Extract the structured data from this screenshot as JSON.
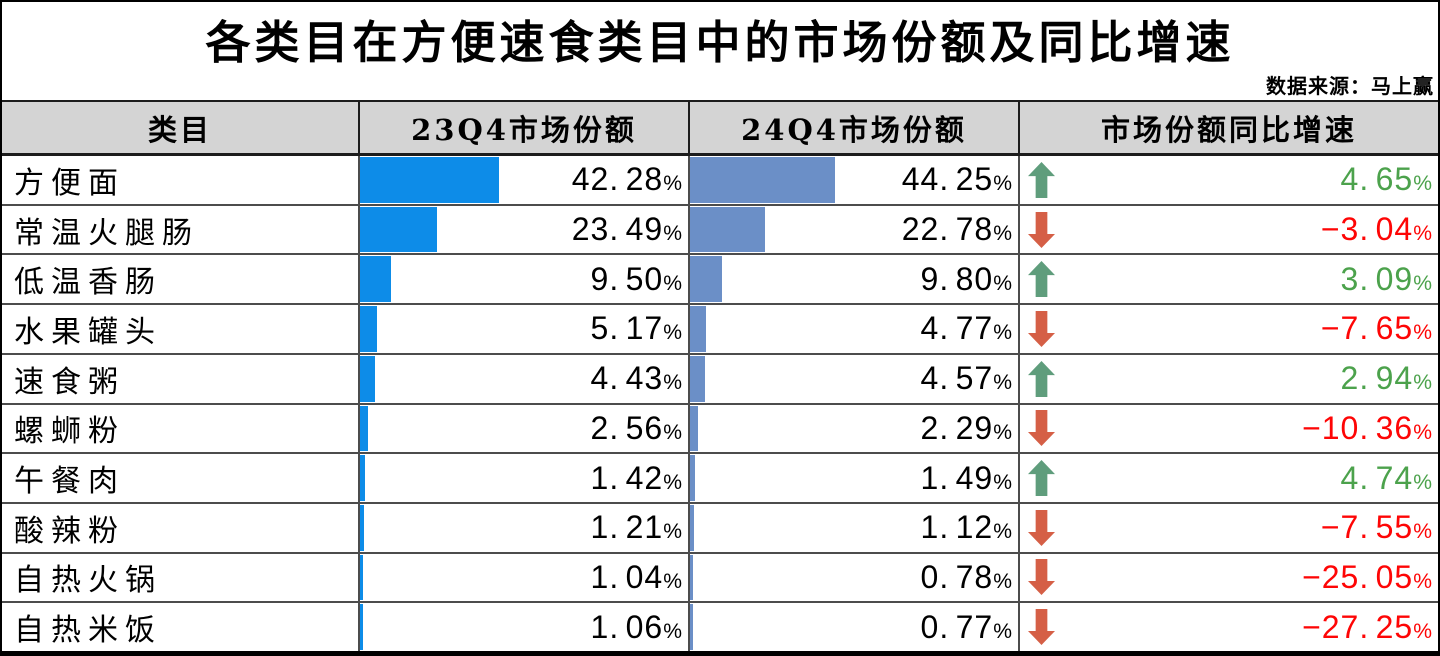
{
  "colors": {
    "bar_23q4": "#0d8ce8",
    "bar_24q4": "#6b8fc7",
    "growth_positive_text": "#4ca24c",
    "growth_negative_text": "#fe0505",
    "arrow_up": "#5f9d7c",
    "arrow_down": "#d55f46",
    "header_bg": "#d4d4d4"
  },
  "chart_data": {
    "type": "table",
    "title": "各类目在方便速食类目中的市场份额及同比增速",
    "source": "数据来源：马上赢",
    "columns": [
      "类目",
      "23Q4市场份额",
      "24Q4市场份额",
      "市场份额同比增速"
    ],
    "bar_axis_min_percent": 0,
    "bar_axis_max_percent": 100,
    "rows": [
      {
        "category": "方便面",
        "share_23q4": 42.28,
        "share_23q4_label": "42.28%",
        "share_24q4": 44.25,
        "share_24q4_label": "44.25%",
        "yoy": 4.65,
        "yoy_label": "4.65%",
        "direction": "up"
      },
      {
        "category": "常温火腿肠",
        "share_23q4": 23.49,
        "share_23q4_label": "23.49%",
        "share_24q4": 22.78,
        "share_24q4_label": "22.78%",
        "yoy": -3.04,
        "yoy_label": "-3.04%",
        "direction": "down"
      },
      {
        "category": "低温香肠",
        "share_23q4": 9.5,
        "share_23q4_label": "9.50%",
        "share_24q4": 9.8,
        "share_24q4_label": "9.80%",
        "yoy": 3.09,
        "yoy_label": "3.09%",
        "direction": "up"
      },
      {
        "category": "水果罐头",
        "share_23q4": 5.17,
        "share_23q4_label": "5.17%",
        "share_24q4": 4.77,
        "share_24q4_label": "4.77%",
        "yoy": -7.65,
        "yoy_label": "-7.65%",
        "direction": "down"
      },
      {
        "category": "速食粥",
        "share_23q4": 4.43,
        "share_23q4_label": "4.43%",
        "share_24q4": 4.57,
        "share_24q4_label": "4.57%",
        "yoy": 2.94,
        "yoy_label": "2.94%",
        "direction": "up"
      },
      {
        "category": "螺蛳粉",
        "share_23q4": 2.56,
        "share_23q4_label": "2.56%",
        "share_24q4": 2.29,
        "share_24q4_label": "2.29%",
        "yoy": -10.36,
        "yoy_label": "-10.36%",
        "direction": "down"
      },
      {
        "category": "午餐肉",
        "share_23q4": 1.42,
        "share_23q4_label": "1.42%",
        "share_24q4": 1.49,
        "share_24q4_label": "1.49%",
        "yoy": 4.74,
        "yoy_label": "4.74%",
        "direction": "up"
      },
      {
        "category": "酸辣粉",
        "share_23q4": 1.21,
        "share_23q4_label": "1.21%",
        "share_24q4": 1.12,
        "share_24q4_label": "1.12%",
        "yoy": -7.55,
        "yoy_label": "-7.55%",
        "direction": "down"
      },
      {
        "category": "自热火锅",
        "share_23q4": 1.04,
        "share_23q4_label": "1.04%",
        "share_24q4": 0.78,
        "share_24q4_label": "0.78%",
        "yoy": -25.05,
        "yoy_label": "-25.05%",
        "direction": "down"
      },
      {
        "category": "自热米饭",
        "share_23q4": 1.06,
        "share_23q4_label": "1.06%",
        "share_24q4": 0.77,
        "share_24q4_label": "0.77%",
        "yoy": -27.25,
        "yoy_label": "-27.25%",
        "direction": "down"
      }
    ]
  }
}
